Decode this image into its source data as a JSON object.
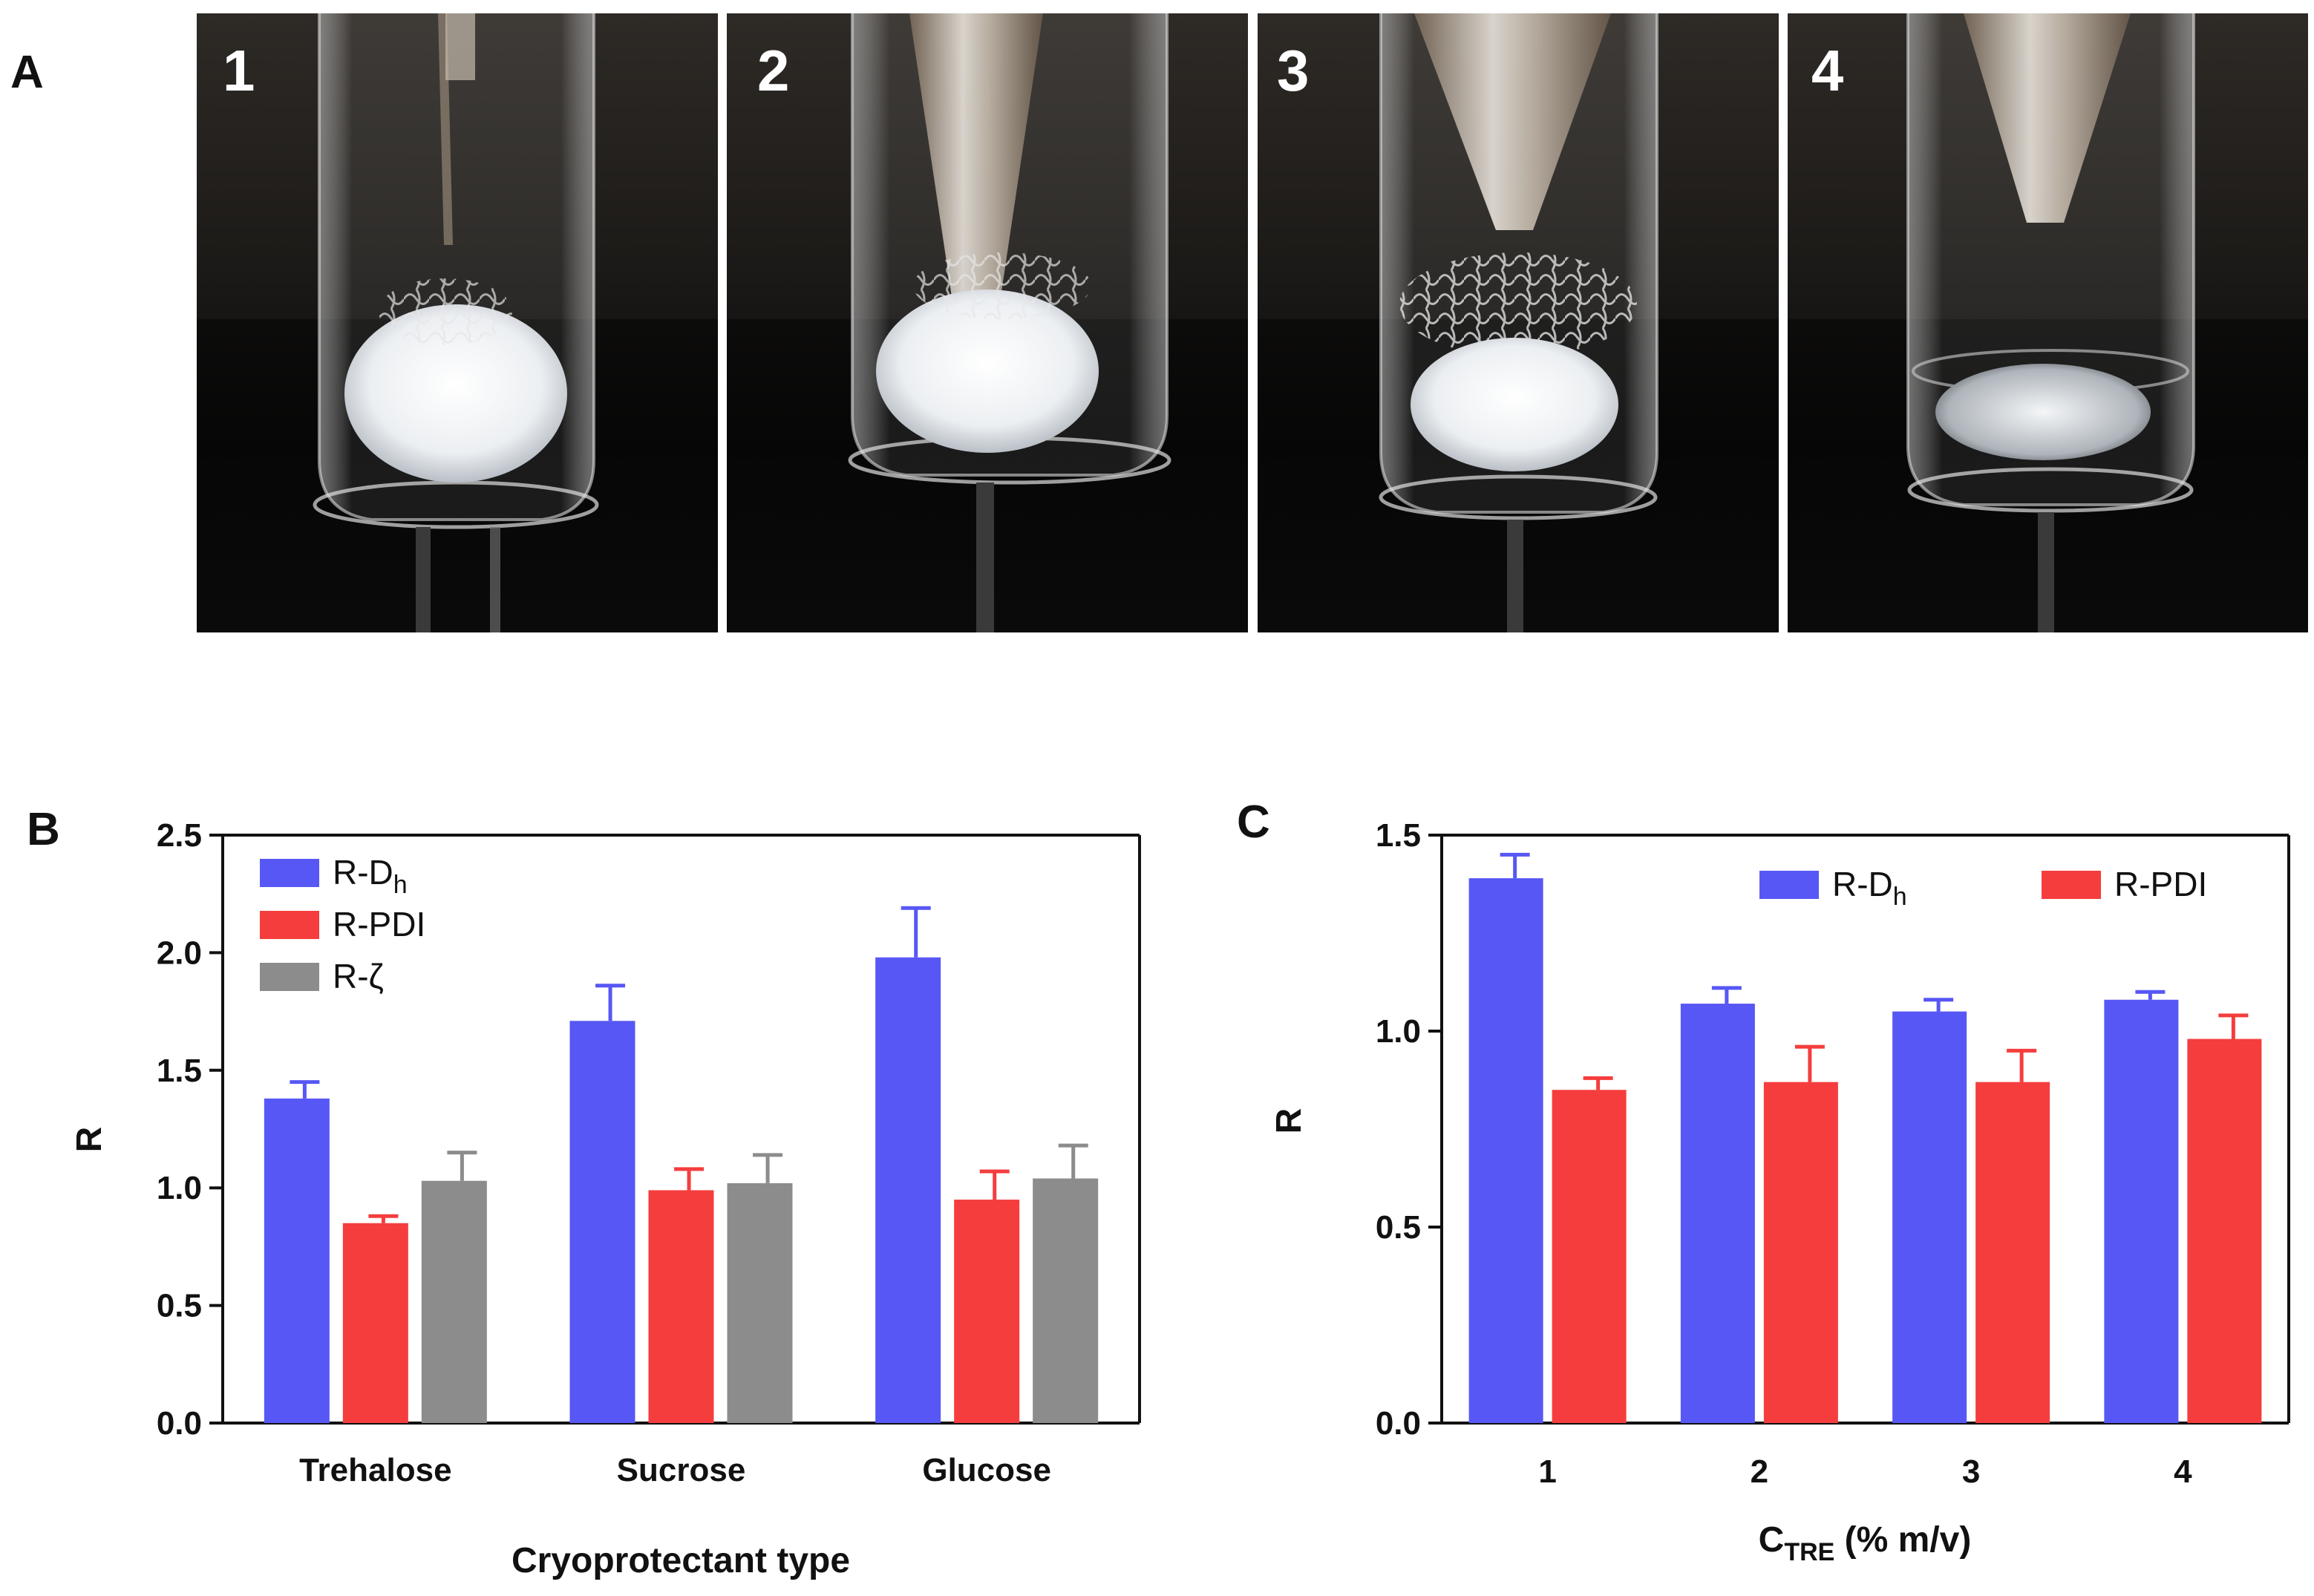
{
  "figure": {
    "panels": {
      "a": "A",
      "b": "B",
      "c": "C"
    },
    "photo_labels": [
      "1",
      "2",
      "3",
      "4"
    ]
  },
  "chart_data": [
    {
      "panel": "B",
      "type": "bar",
      "title": "",
      "xlabel": "Cryoprotectant type",
      "ylabel": "R",
      "ylim": [
        0,
        2.5
      ],
      "yticks": [
        "0.0",
        "0.5",
        "1.0",
        "1.5",
        "2.0",
        "2.5"
      ],
      "categories": [
        "Trehalose",
        "Sucrose",
        "Glucose"
      ],
      "legend_position": "top-left",
      "series": [
        {
          "name": "R-D",
          "sub": "h",
          "color": "#5757f5",
          "values": [
            1.38,
            1.71,
            1.98
          ],
          "errors": [
            0.07,
            0.15,
            0.21
          ]
        },
        {
          "name": "R-PDI",
          "sub": "",
          "color": "#f53d3d",
          "values": [
            0.85,
            0.99,
            0.95
          ],
          "errors": [
            0.03,
            0.09,
            0.12
          ]
        },
        {
          "name": "R-ζ",
          "sub": "",
          "color": "#8c8c8c",
          "values": [
            1.03,
            1.02,
            1.04
          ],
          "errors": [
            0.12,
            0.12,
            0.14
          ]
        }
      ]
    },
    {
      "panel": "C",
      "type": "bar",
      "title": "",
      "xlabel": "C",
      "xlabel_sub": "TRE",
      "xlabel_rest": " (% m/v)",
      "ylabel": "R",
      "ylim": [
        0,
        1.5
      ],
      "yticks": [
        "0.0",
        "0.5",
        "1.0",
        "1.5"
      ],
      "categories": [
        "1",
        "2",
        "3",
        "4"
      ],
      "legend_position": "top-right",
      "series": [
        {
          "name": "R-D",
          "sub": "h",
          "color": "#5757f5",
          "values": [
            1.39,
            1.07,
            1.05,
            1.08
          ],
          "errors": [
            0.06,
            0.04,
            0.03,
            0.02
          ]
        },
        {
          "name": "R-PDI",
          "sub": "",
          "color": "#f53d3d",
          "values": [
            0.85,
            0.87,
            0.87,
            0.98
          ],
          "errors": [
            0.03,
            0.09,
            0.08,
            0.06
          ]
        }
      ]
    }
  ]
}
